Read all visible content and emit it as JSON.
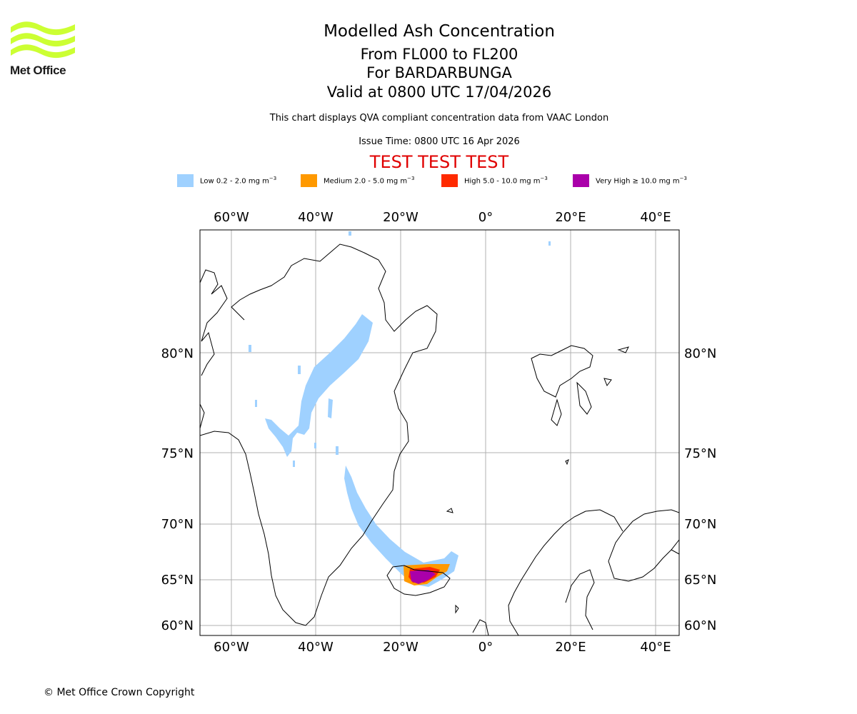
{
  "logo": {
    "name": "Met Office",
    "color": "#ccff33"
  },
  "title": {
    "main": "Modelled Ash Concentration",
    "line1": "From FL000 to FL200",
    "line2": "For BARDARBUNGA",
    "line3": "Valid at 0800 UTC 17/04/2026"
  },
  "note": "This chart displays QVA compliant concentration data from VAAC London",
  "issue_time": "Issue Time: 0800 UTC 16 Apr 2026",
  "test_banner": "TEST TEST TEST",
  "legend": [
    {
      "label": "Low 0.2 - 2.0 mg m",
      "unit_exp": "−3",
      "color": "#9fd1ff"
    },
    {
      "label": "Medium 2.0 - 5.0 mg m",
      "unit_exp": "−3",
      "color": "#ff9900"
    },
    {
      "label": "High 5.0 - 10.0 mg m",
      "unit_exp": "−3",
      "color": "#ff2a00"
    },
    {
      "label": "Very High  ≥  10.0 mg m",
      "unit_exp": "−3",
      "color": "#aa00aa"
    }
  ],
  "map": {
    "lon_ticks": [
      "60°W",
      "40°W",
      "20°W",
      "0°",
      "20°E",
      "40°E"
    ],
    "lat_ticks": [
      "80°N",
      "75°N",
      "70°N",
      "65°N",
      "60°N"
    ],
    "coast_color": "#000000",
    "grid_color": "#b0b0b0"
  },
  "copyright": "© Met Office Crown Copyright"
}
